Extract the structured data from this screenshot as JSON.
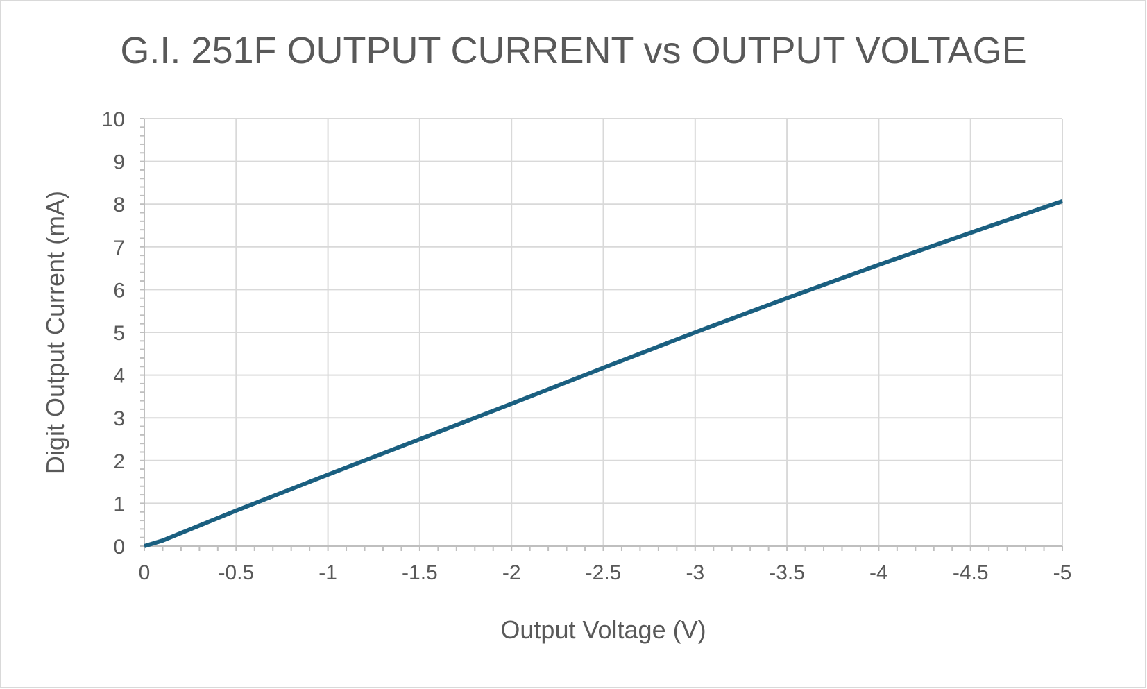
{
  "chart_data": {
    "type": "line",
    "title": "G.I. 251F OUTPUT CURRENT vs OUTPUT VOLTAGE",
    "xlabel": "Output Voltage (V)",
    "ylabel": "Digit Output Current (mA)",
    "xlim": [
      0,
      -5
    ],
    "ylim": [
      0,
      10
    ],
    "x_ticks": [
      0,
      -0.5,
      -1,
      -1.5,
      -2,
      -2.5,
      -3,
      -3.5,
      -4,
      -4.5,
      -5
    ],
    "x_tick_labels": [
      "0",
      "-0.5",
      "-1",
      "-1.5",
      "-2",
      "-2.5",
      "-3",
      "-3.5",
      "-4",
      "-4.5",
      "-5"
    ],
    "y_ticks": [
      0,
      1,
      2,
      3,
      4,
      5,
      6,
      7,
      8,
      9,
      10
    ],
    "y_tick_labels": [
      "0",
      "1",
      "2",
      "3",
      "4",
      "5",
      "6",
      "7",
      "8",
      "9",
      "10"
    ],
    "grid": true,
    "legend": "none",
    "series": [
      {
        "color": "#1a5f80",
        "x": [
          0,
          -0.1,
          -0.5,
          -1,
          -1.5,
          -2,
          -2.5,
          -3,
          -3.5,
          -4,
          -4.5,
          -5
        ],
        "y": [
          0,
          0.13,
          0.83,
          1.67,
          2.5,
          3.33,
          4.17,
          5.0,
          5.8,
          6.58,
          7.33,
          8.07
        ]
      }
    ]
  }
}
